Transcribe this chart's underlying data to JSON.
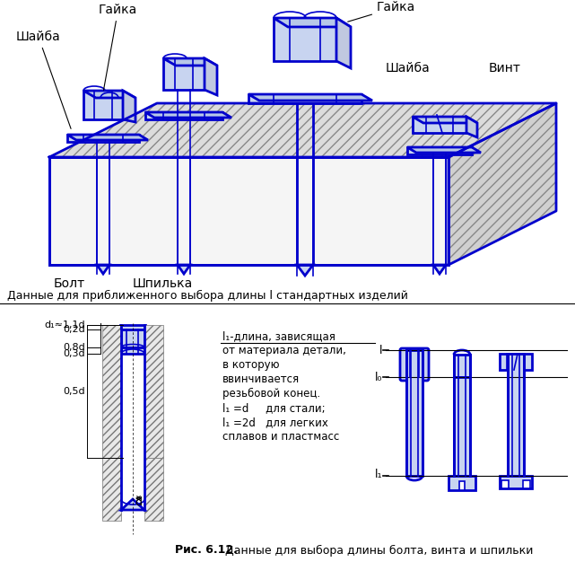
{
  "blue": "#0000CC",
  "black": "#000000",
  "bg": "#FFFFFF",
  "gray_hatch": "#888888",
  "gray_fill": "#E0E0E0",
  "blue_fill": "#C8D4F0",
  "section_title": "Данные для приближенного выбора длины l стандартных изделий",
  "caption_bold": "Рис. 6.12.",
  "caption_rest": " Данные для выбора длины болта, винта и шпильки",
  "text_block_line1": "l₁-длина, зависящая",
  "text_block_line2": "от материала детали,",
  "text_block_line3": "в которую",
  "text_block_line4": "ввинчивается",
  "text_block_line5": "резьбовой конец.",
  "text_block_line6": "l₁ =d     для стали;",
  "text_block_line7": "l₁ =2d   для легких",
  "text_block_line8": "сплавов и пластмасс",
  "label_shaiba": "Шайба",
  "label_gaika": "Гайка",
  "label_bolt": "Болт",
  "label_shpilka": "Шпилька",
  "label_vint": "Винт",
  "fig_width": 6.41,
  "fig_height": 6.26
}
